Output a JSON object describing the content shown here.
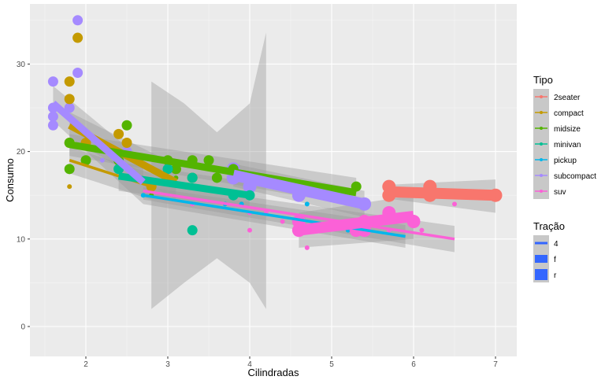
{
  "chart_data": {
    "type": "scatter",
    "xlabel": "Cilindradas",
    "ylabel": "Consumo",
    "xlim": [
      1.32,
      7.26
    ],
    "ylim": [
      -3.4,
      36.9
    ],
    "x_ticks": [
      "2",
      "3",
      "4",
      "5",
      "6",
      "7"
    ],
    "y_ticks": [
      "0",
      "10",
      "20",
      "30"
    ],
    "grid": true,
    "legend_position": "right",
    "legend_color": {
      "title": "Tipo",
      "entries": [
        {
          "label": "2seater",
          "color": "#F8766D"
        },
        {
          "label": "compact",
          "color": "#C49A00"
        },
        {
          "label": "midsize",
          "color": "#53B400"
        },
        {
          "label": "minivan",
          "color": "#00C094"
        },
        {
          "label": "pickup",
          "color": "#00B6EB"
        },
        {
          "label": "subcompact",
          "color": "#A58AFF"
        },
        {
          "label": "suv",
          "color": "#FB61D7"
        }
      ]
    },
    "legend_size": {
      "title": "Tração",
      "entries": [
        {
          "label": "4"
        },
        {
          "label": "f"
        },
        {
          "label": "r"
        }
      ],
      "color": "#3366FF"
    },
    "points": [
      [
        1.6,
        28,
        "subcompact",
        "f"
      ],
      [
        1.6,
        25,
        "subcompact",
        "f"
      ],
      [
        1.6,
        24,
        "subcompact",
        "f"
      ],
      [
        1.6,
        23,
        "subcompact",
        "f"
      ],
      [
        1.9,
        35,
        "subcompact",
        "f"
      ],
      [
        1.9,
        29,
        "subcompact",
        "f"
      ],
      [
        1.8,
        25,
        "subcompact",
        "f"
      ],
      [
        2.5,
        20,
        "subcompact",
        "f"
      ],
      [
        2.2,
        19,
        "subcompact",
        "4"
      ],
      [
        2.0,
        21,
        "subcompact",
        "f"
      ],
      [
        3.8,
        18,
        "subcompact",
        "r"
      ],
      [
        3.8,
        17,
        "subcompact",
        "r"
      ],
      [
        4.6,
        15,
        "subcompact",
        "r"
      ],
      [
        5.4,
        14,
        "subcompact",
        "r"
      ],
      [
        4.0,
        16,
        "subcompact",
        "r"
      ],
      [
        1.8,
        28,
        "compact",
        "f"
      ],
      [
        1.8,
        26,
        "compact",
        "f"
      ],
      [
        1.9,
        33,
        "compact",
        "f"
      ],
      [
        1.8,
        21,
        "compact",
        "f"
      ],
      [
        2.4,
        22,
        "compact",
        "f"
      ],
      [
        2.5,
        21,
        "compact",
        "f"
      ],
      [
        2.0,
        21,
        "compact",
        "f"
      ],
      [
        2.8,
        16,
        "compact",
        "f"
      ],
      [
        3.1,
        18,
        "compact",
        "f"
      ],
      [
        1.8,
        16,
        "compact",
        "4"
      ],
      [
        2.0,
        19,
        "compact",
        "4"
      ],
      [
        2.8,
        15,
        "compact",
        "4"
      ],
      [
        1.8,
        21,
        "midsize",
        "f"
      ],
      [
        1.8,
        18,
        "midsize",
        "f"
      ],
      [
        2.5,
        23,
        "midsize",
        "f"
      ],
      [
        2.4,
        19,
        "midsize",
        "f"
      ],
      [
        3.0,
        19,
        "midsize",
        "f"
      ],
      [
        3.3,
        19,
        "midsize",
        "f"
      ],
      [
        3.5,
        19,
        "midsize",
        "f"
      ],
      [
        3.8,
        18,
        "midsize",
        "f"
      ],
      [
        2.0,
        19,
        "midsize",
        "f"
      ],
      [
        3.1,
        18,
        "midsize",
        "f"
      ],
      [
        3.3,
        17,
        "midsize",
        "f"
      ],
      [
        3.6,
        17,
        "midsize",
        "f"
      ],
      [
        5.3,
        16,
        "midsize",
        "f"
      ],
      [
        2.8,
        15,
        "midsize",
        "4"
      ],
      [
        3.1,
        17,
        "midsize",
        "4"
      ],
      [
        2.4,
        18,
        "minivan",
        "f"
      ],
      [
        3.3,
        17,
        "minivan",
        "f"
      ],
      [
        3.3,
        11,
        "minivan",
        "f"
      ],
      [
        3.8,
        15,
        "minivan",
        "f"
      ],
      [
        4.0,
        15,
        "minivan",
        "f"
      ],
      [
        3.0,
        18,
        "minivan",
        "f"
      ],
      [
        2.7,
        15,
        "pickup",
        "4"
      ],
      [
        3.7,
        14,
        "pickup",
        "4"
      ],
      [
        4.7,
        11,
        "pickup",
        "4"
      ],
      [
        5.2,
        11,
        "pickup",
        "4"
      ],
      [
        5.7,
        13,
        "pickup",
        "4"
      ],
      [
        4.7,
        14,
        "pickup",
        "4"
      ],
      [
        3.9,
        14,
        "pickup",
        "4"
      ],
      [
        3.3,
        14,
        "suv",
        "4"
      ],
      [
        4.0,
        13,
        "suv",
        "4"
      ],
      [
        4.2,
        13,
        "suv",
        "4"
      ],
      [
        4.7,
        9,
        "suv",
        "4"
      ],
      [
        5.3,
        12,
        "suv",
        "4"
      ],
      [
        5.7,
        11,
        "suv",
        "4"
      ],
      [
        6.5,
        14,
        "suv",
        "4"
      ],
      [
        4.0,
        11,
        "suv",
        "4"
      ],
      [
        4.6,
        12,
        "suv",
        "4"
      ],
      [
        4.4,
        12,
        "suv",
        "4"
      ],
      [
        6.1,
        11,
        "suv",
        "4"
      ],
      [
        4.6,
        11,
        "suv",
        "r"
      ],
      [
        5.4,
        12,
        "suv",
        "r"
      ],
      [
        5.4,
        11,
        "suv",
        "r"
      ],
      [
        5.7,
        13,
        "suv",
        "r"
      ],
      [
        6.0,
        12,
        "suv",
        "r"
      ],
      [
        5.3,
        11,
        "suv",
        "r"
      ],
      [
        4.6,
        12,
        "suv",
        "r"
      ],
      [
        5.7,
        16,
        "2seater",
        "r"
      ],
      [
        5.7,
        15,
        "2seater",
        "r"
      ],
      [
        6.2,
        16,
        "2seater",
        "r"
      ],
      [
        6.2,
        15,
        "2seater",
        "r"
      ],
      [
        7.0,
        15,
        "2seater",
        "r"
      ]
    ],
    "fits": [
      {
        "class": "minivan",
        "drv": "4",
        "x": [
          2.8,
          3.2,
          3.6,
          4.0,
          4.2
        ],
        "y": [
          15,
          15,
          15,
          15,
          15
        ],
        "lo": [
          2,
          5,
          7.8,
          5,
          2
        ],
        "hi": [
          28,
          25.5,
          22.2,
          25.5,
          33.6
        ],
        "line": false
      },
      {
        "class": "compact",
        "drv": "4",
        "x": [
          1.8,
          2.8
        ],
        "y": [
          19,
          16
        ],
        "lo": [
          17.5,
          14.5
        ],
        "hi": [
          20.5,
          17.5
        ]
      },
      {
        "class": "compact",
        "drv": "f",
        "x": [
          1.8,
          3.1
        ],
        "y": [
          23,
          16.5
        ],
        "lo": [
          21.5,
          14.5
        ],
        "hi": [
          24.5,
          18.5
        ]
      },
      {
        "class": "midsize",
        "drv": "f",
        "x": [
          1.8,
          5.3
        ],
        "y": [
          20.8,
          15.3
        ],
        "lo": [
          19.5,
          13.8
        ],
        "hi": [
          22,
          17
        ]
      },
      {
        "class": "minivan",
        "drv": "f",
        "x": [
          2.4,
          4.0
        ],
        "y": [
          17.2,
          15
        ],
        "lo": [
          15.5,
          13.5
        ],
        "hi": [
          18.8,
          16.5
        ]
      },
      {
        "class": "pickup",
        "drv": "4",
        "x": [
          2.7,
          5.9
        ],
        "y": [
          15,
          10.3
        ],
        "lo": [
          14,
          9
        ],
        "hi": [
          16,
          11.6
        ]
      },
      {
        "class": "suv",
        "drv": "4",
        "x": [
          2.7,
          6.5
        ],
        "y": [
          15.5,
          10
        ],
        "lo": [
          14.5,
          8.5
        ],
        "hi": [
          16.5,
          11.5
        ]
      },
      {
        "class": "subcompact",
        "drv": "f",
        "x": [
          1.6,
          2.7
        ],
        "y": [
          25.5,
          16.5
        ],
        "lo": [
          23.5,
          14
        ],
        "hi": [
          27.5,
          19
        ]
      },
      {
        "class": "subcompact",
        "drv": "r",
        "x": [
          3.8,
          5.4
        ],
        "y": [
          17.3,
          14
        ],
        "lo": [
          16,
          12.5
        ],
        "hi": [
          18.6,
          15.5
        ]
      },
      {
        "class": "suv",
        "drv": "r",
        "x": [
          4.6,
          6.0
        ],
        "y": [
          11,
          12.6
        ],
        "lo": [
          9,
          10
        ],
        "hi": [
          13,
          15
        ]
      },
      {
        "class": "2seater",
        "drv": "r",
        "x": [
          5.7,
          7.0
        ],
        "y": [
          15.4,
          15.0
        ],
        "lo": [
          14.6,
          13
        ],
        "hi": [
          16.2,
          16.8
        ]
      }
    ]
  }
}
